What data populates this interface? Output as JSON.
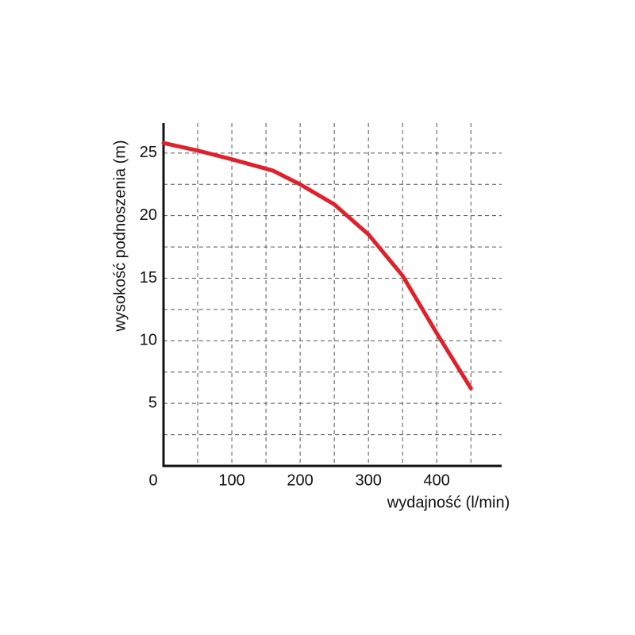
{
  "chart_data": {
    "type": "line",
    "x_label": "wydajność (l/min)",
    "y_label": "wysokość podnoszenia (m)",
    "x": [
      0,
      50,
      100,
      160,
      200,
      250,
      300,
      350,
      400,
      450
    ],
    "series": [
      {
        "color": "#e0202a",
        "values": [
          25.8,
          25.2,
          24.5,
          23.6,
          22.5,
          20.9,
          18.5,
          15.2,
          10.6,
          6.2
        ]
      }
    ],
    "xlim": [
      0,
      495
    ],
    "ylim": [
      0,
      27.4
    ],
    "xticks": [
      0,
      100,
      200,
      300,
      400
    ],
    "yticks": [
      5,
      10,
      15,
      20,
      25
    ],
    "x_grid": [
      50,
      100,
      150,
      200,
      250,
      300,
      350,
      400,
      450
    ],
    "y_grid": [
      2.5,
      5,
      7.5,
      10,
      12.5,
      15,
      17.5,
      20,
      22.5,
      25
    ],
    "grid": true
  }
}
